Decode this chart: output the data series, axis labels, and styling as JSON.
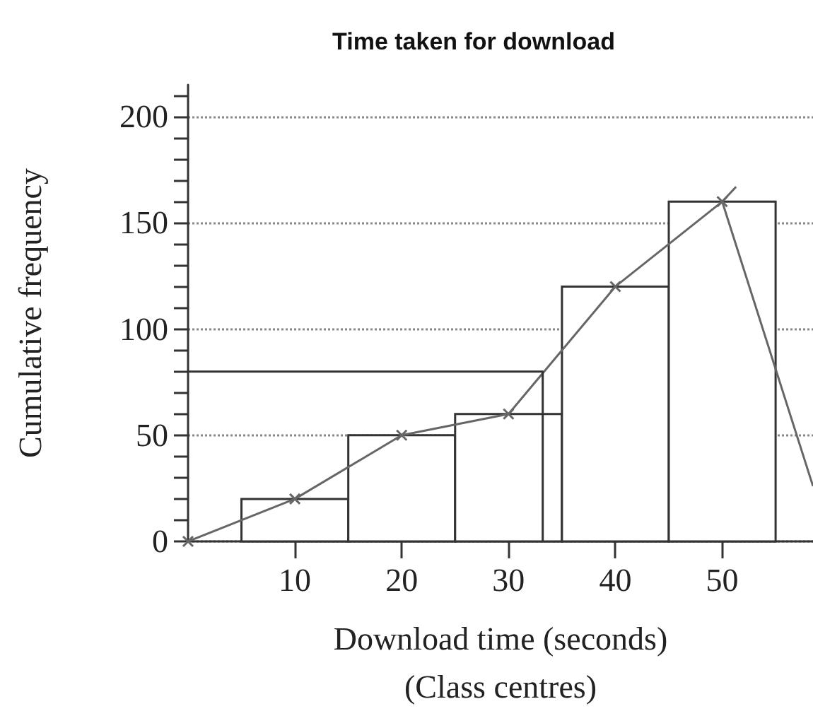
{
  "chart_data": {
    "type": "histogram",
    "title": "Time taken for download",
    "xlabel": "Download time (seconds)\n(Class centres)",
    "ylabel": "Cumulative frequency",
    "bins": [
      5,
      15,
      25,
      35,
      45,
      55
    ],
    "values": [
      20,
      50,
      60,
      120,
      160
    ],
    "color": "#ffffff",
    "series": [
      {
        "type": "line",
        "x": [
          0,
          10,
          20,
          30,
          40,
          50
        ],
        "values": [
          0,
          20,
          50,
          60,
          120,
          160
        ],
        "color": "#666666",
        "marker": "cross"
      },
      {
        "type": "line",
        "x": [
          50,
          51.3
        ],
        "values": [
          160,
          167
        ],
        "color": "#666666"
      },
      {
        "type": "line",
        "x": [
          50,
          58.5
        ],
        "values": [
          160,
          26
        ],
        "color": "#666666"
      },
      {
        "type": "line",
        "x": [
          0,
          33.2,
          33.2
        ],
        "values": [
          80,
          80,
          0
        ],
        "color": "#333333"
      }
    ],
    "xlim": [
      0,
      58.5
    ],
    "xticks": [
      10,
      20,
      30,
      40,
      50
    ],
    "ylim": [
      0,
      215
    ],
    "yticks": [
      0,
      {
        "value": 10,
        "label": null
      },
      {
        "value": 20,
        "label": null
      },
      {
        "value": 30,
        "label": null
      },
      {
        "value": 40,
        "label": null
      },
      50,
      {
        "value": 60,
        "label": null
      },
      {
        "value": 70,
        "label": null
      },
      {
        "value": 80,
        "label": null
      },
      {
        "value": 90,
        "label": null
      },
      100,
      {
        "value": 110,
        "label": null
      },
      {
        "value": 120,
        "label": null
      },
      {
        "value": 130,
        "label": null
      },
      {
        "value": 140,
        "label": null
      },
      150,
      {
        "value": 160,
        "label": null
      },
      {
        "value": 170,
        "label": null
      },
      {
        "value": 180,
        "label": null
      },
      {
        "value": 190,
        "label": null
      },
      200,
      {
        "value": 210,
        "label": null
      }
    ],
    "grid": "y"
  }
}
